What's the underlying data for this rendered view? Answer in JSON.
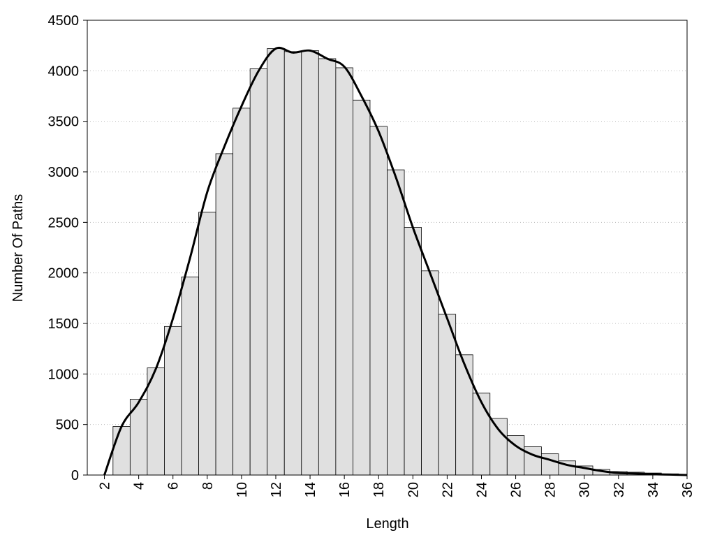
{
  "chart_data": {
    "type": "histogram",
    "x_label": "Length",
    "y_label": "Number Of Paths",
    "bins": [
      2.5,
      3.5,
      4.5,
      5.5,
      6.5,
      7.5,
      8.5,
      9.5,
      10.5,
      11.5,
      12.5,
      13.5,
      14.5,
      15.5,
      16.5,
      17.5,
      18.5,
      19.5,
      20.5,
      21.5,
      22.5,
      23.5,
      24.5,
      25.5,
      26.5,
      27.5,
      28.5,
      29.5,
      30.5,
      31.5,
      32.5,
      33.5,
      34.5,
      35.5
    ],
    "counts": [
      480,
      750,
      1060,
      1470,
      1960,
      2600,
      3180,
      3630,
      4020,
      4220,
      4190,
      4200,
      4120,
      4030,
      3710,
      3450,
      3020,
      2450,
      2020,
      1590,
      1190,
      810,
      560,
      390,
      280,
      210,
      140,
      90,
      55,
      35,
      28,
      20,
      12
    ],
    "color": "#e0e0e0",
    "curve": {
      "x": [
        2,
        3,
        4,
        5,
        6,
        7,
        8,
        9,
        10,
        11,
        12,
        13,
        14,
        15,
        16,
        17,
        18,
        19,
        20,
        21,
        22,
        23,
        24,
        25,
        26,
        27,
        28,
        29,
        30,
        31,
        32,
        33,
        34,
        35,
        36
      ],
      "values": [
        0,
        480,
        720,
        1050,
        1550,
        2150,
        2800,
        3250,
        3650,
        4000,
        4220,
        4180,
        4200,
        4120,
        4040,
        3750,
        3400,
        2950,
        2450,
        2000,
        1550,
        1100,
        720,
        450,
        290,
        200,
        150,
        100,
        70,
        40,
        20,
        15,
        8,
        4,
        0
      ],
      "color": "#000000"
    },
    "xlim": [
      1,
      36
    ],
    "ylim": [
      0,
      4500
    ],
    "xticks": [
      2,
      4,
      6,
      8,
      10,
      12,
      14,
      16,
      18,
      20,
      22,
      24,
      26,
      28,
      30,
      32,
      34,
      36
    ],
    "yticks": [
      0,
      500,
      1000,
      1500,
      2000,
      2500,
      3000,
      3500,
      4000,
      4500
    ],
    "grid": true
  }
}
